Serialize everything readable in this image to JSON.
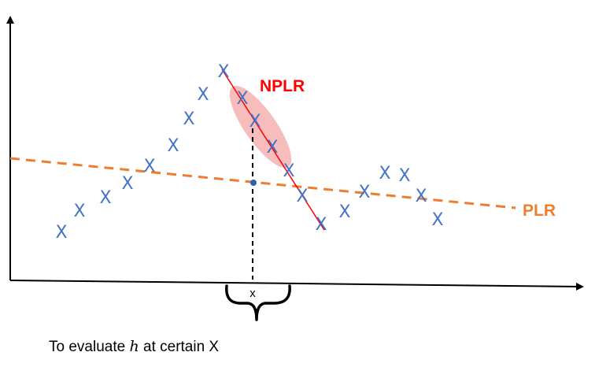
{
  "labels": {
    "npl": "NPLR",
    "plr": "PLR",
    "x_mark": "x",
    "caption_pre": "To evaluate ",
    "caption_var": "h",
    "caption_post": " at certain X"
  },
  "point_glyph": "X",
  "colors": {
    "points": "#4472c4",
    "plr_line": "#ed7d31",
    "npl_line": "#ff0000",
    "npl_ellipse": "#f4a6a6",
    "eval_point": "#2e5fa8",
    "axes": "#000000"
  }
}
